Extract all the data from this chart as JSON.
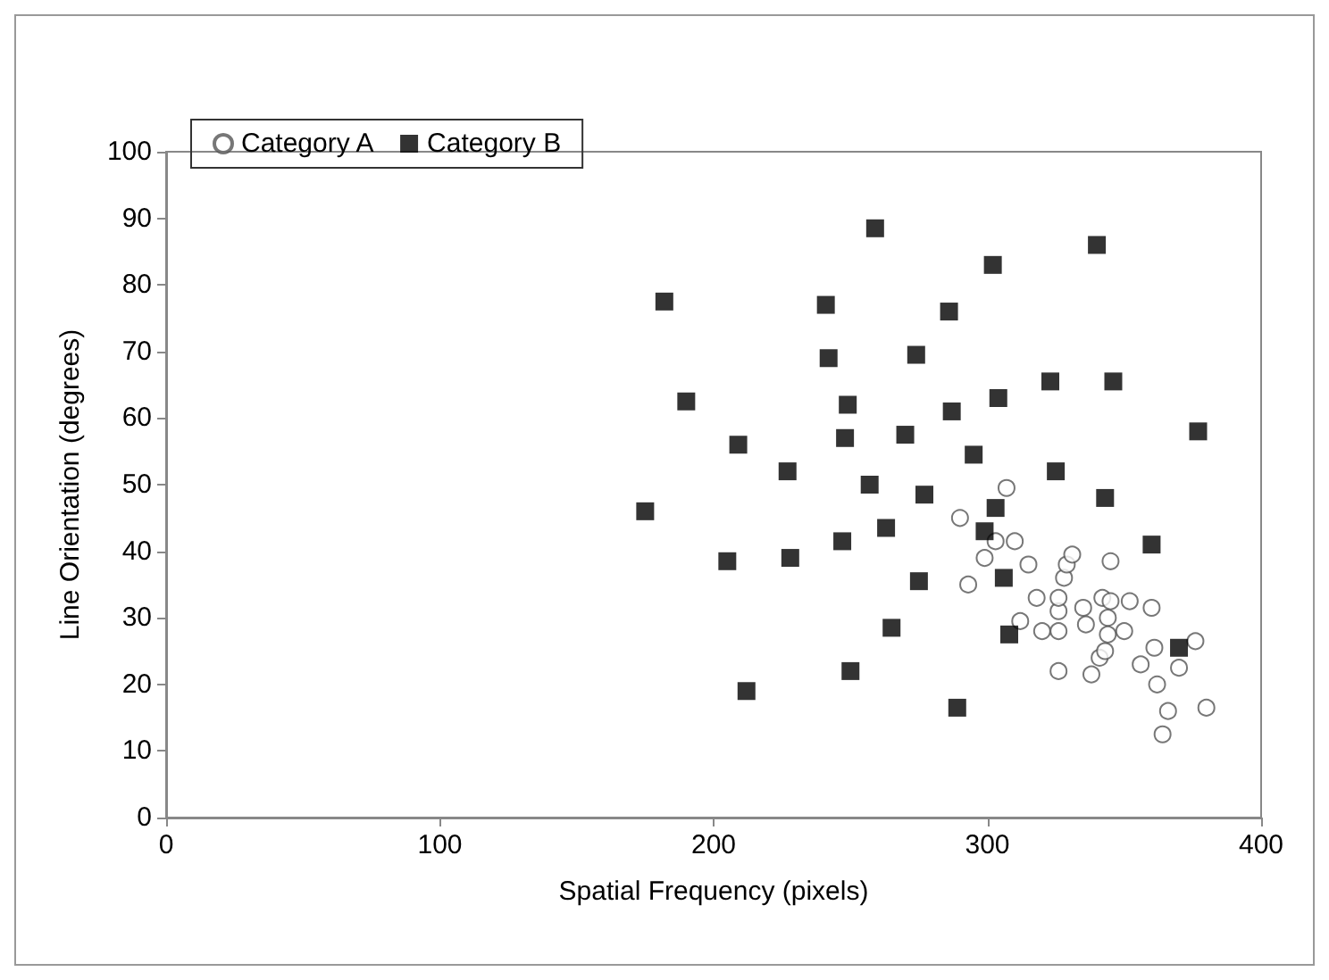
{
  "chart_data": {
    "type": "scatter",
    "xlabel": "Spatial Frequency (pixels)",
    "ylabel": "Line Orientation (degrees)",
    "xlim": [
      0,
      400
    ],
    "xticks": [
      0,
      100,
      200,
      300,
      400
    ],
    "ylim": [
      0,
      100
    ],
    "yticks": [
      0,
      10,
      20,
      30,
      40,
      50,
      60,
      70,
      80,
      90,
      100
    ],
    "grid": false,
    "legend": "top left",
    "series": [
      {
        "name": "Category A",
        "color": "#ffffff",
        "marker": "circle",
        "x": [
          290,
          293,
          299,
          303,
          307,
          310,
          312,
          315,
          318,
          320,
          326,
          326,
          326,
          326,
          328,
          329,
          331,
          335,
          336,
          338,
          341,
          342,
          343,
          344,
          344,
          345,
          345,
          350,
          352,
          356,
          360,
          362,
          361,
          364,
          366,
          370,
          376,
          380
        ],
        "values": [
          45,
          35,
          39,
          41.5,
          49.5,
          41.5,
          29.5,
          38,
          33,
          28,
          22,
          28,
          31,
          33,
          36,
          38,
          39.5,
          31.5,
          29,
          21.5,
          24,
          33,
          25,
          30,
          27.5,
          38.5,
          32.5,
          28,
          32.5,
          23,
          31.5,
          20,
          25.5,
          12.5,
          16,
          22.5,
          26.5,
          16.5
        ]
      },
      {
        "name": "Category B",
        "color": "#000000",
        "marker": "square",
        "x": [
          175,
          182,
          190,
          205,
          209,
          212,
          227,
          228,
          241,
          242,
          247,
          248,
          249,
          250,
          257,
          259,
          263,
          265,
          270,
          274,
          275,
          277,
          286,
          287,
          289,
          295,
          299,
          302,
          303,
          304,
          306,
          308,
          323,
          325,
          340,
          343,
          346,
          360,
          370,
          377
        ],
        "values": [
          46,
          77.5,
          62.5,
          38.5,
          56,
          19,
          52,
          39,
          77,
          69,
          41.5,
          57,
          62,
          22,
          50,
          88.5,
          43.5,
          28.5,
          57.5,
          69.5,
          35.5,
          48.5,
          76,
          61,
          16.5,
          54.5,
          43,
          83,
          46.5,
          63,
          36,
          27.5,
          65.5,
          52,
          86,
          48,
          65.5,
          41,
          25.5,
          58
        ]
      }
    ]
  }
}
